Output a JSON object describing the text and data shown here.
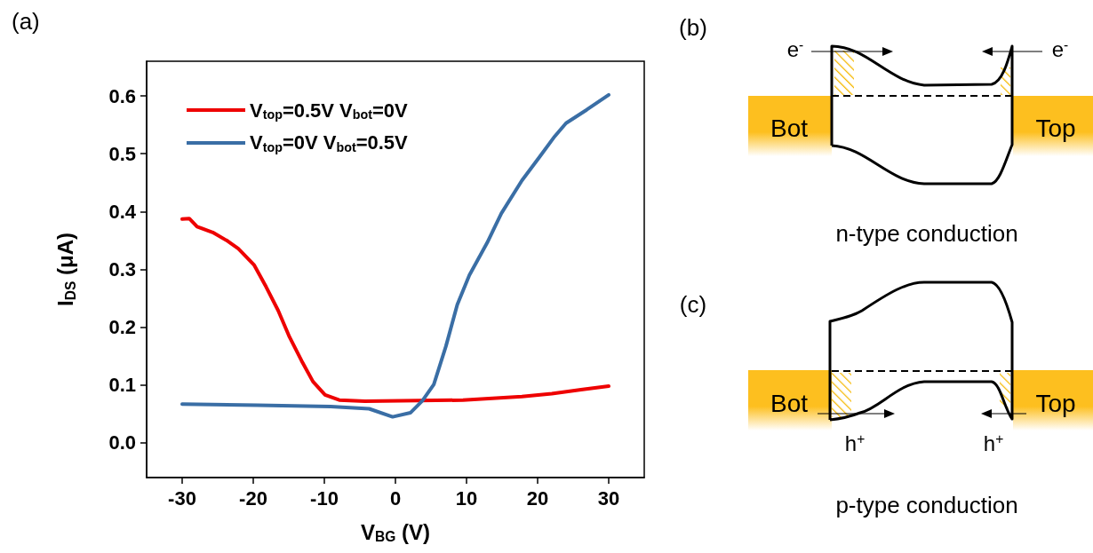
{
  "chart_data": [
    {
      "type": "line",
      "title": "(a)",
      "xlabel": "V$_{BG}$ (V)",
      "ylabel": "I$_{DS}$ (μA)",
      "xlim": [
        -35,
        35
      ],
      "ylim": [
        -0.06,
        0.66
      ],
      "xticks": [
        -30,
        -20,
        -10,
        0,
        10,
        20,
        30
      ],
      "yticks": [
        {
          "value": 0,
          "label": "0.0"
        },
        0.1,
        0.2,
        0.3,
        0.4,
        0.5,
        0.6
      ],
      "legend": "top left",
      "series": [
        {
          "name": "V$_{top}$=0.5V V$_{bot}$=0V",
          "color": "#ee0000",
          "x": [
            -30,
            -29,
            -27.9,
            -25.7,
            -23.6,
            -22.1,
            -19.9,
            -18.2,
            -16.5,
            -14.9,
            -13.2,
            -11.6,
            -9.9,
            -7.9,
            -4.3,
            3.3,
            9.5,
            17.8,
            22,
            26.1,
            30
          ],
          "values": [
            0.387,
            0.388,
            0.374,
            0.364,
            0.349,
            0.336,
            0.308,
            0.27,
            0.229,
            0.183,
            0.142,
            0.106,
            0.083,
            0.074,
            0.072,
            0.073,
            0.074,
            0.08,
            0.085,
            0.092,
            0.098
          ]
        },
        {
          "name": "V$_{top}$=0V V$_{bot}$=0.5V",
          "color": "#3a6ea5",
          "x": [
            -30,
            -19.4,
            -9.1,
            -3.7,
            -0.4,
            2.1,
            3.8,
            5.4,
            7.1,
            8.7,
            10.4,
            12.9,
            14.9,
            17.8,
            20.3,
            22.4,
            24,
            26.9,
            30
          ],
          "values": [
            0.067,
            0.065,
            0.063,
            0.059,
            0.045,
            0.052,
            0.073,
            0.101,
            0.167,
            0.239,
            0.29,
            0.346,
            0.397,
            0.454,
            0.495,
            0.53,
            0.553,
            0.576,
            0.602
          ]
        }
      ]
    },
    {
      "type": "other",
      "title": "(b)",
      "annotations": [
        "e$^{-}$",
        "e$^{-}$",
        "Bot",
        "Top",
        "n-type conduction"
      ]
    },
    {
      "type": "other",
      "title": "(c)",
      "annotations": [
        "Bot",
        "Top",
        "h$^{+}$",
        "h$^{+}$",
        "p-type conduction"
      ]
    }
  ]
}
